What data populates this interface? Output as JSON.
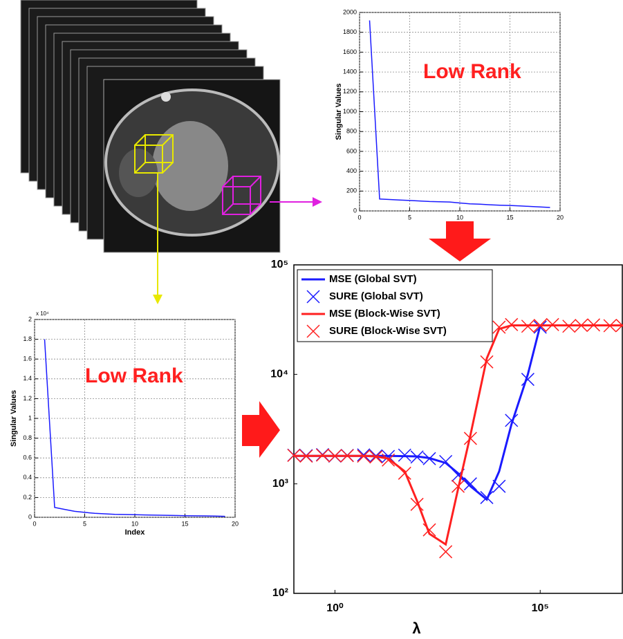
{
  "chart_data": [
    {
      "type": "line",
      "ylabel": "Singular Values",
      "annotation": "Low Rank",
      "color": "#1a1aff",
      "x": [
        1,
        2,
        3,
        4,
        5,
        6,
        7,
        8,
        9,
        10,
        11,
        12,
        13,
        14,
        15,
        16,
        17,
        18,
        19
      ],
      "values": [
        1920,
        120,
        115,
        110,
        105,
        100,
        95,
        92,
        90,
        80,
        72,
        68,
        62,
        58,
        55,
        50,
        45,
        40,
        35
      ],
      "xlim": [
        0,
        20
      ],
      "xticks": [
        0,
        5,
        10,
        15,
        20
      ],
      "ylim": [
        0,
        2000
      ],
      "yticks": [
        0,
        200,
        400,
        600,
        800,
        1000,
        1200,
        1400,
        1600,
        1800,
        2000
      ],
      "grid": true
    },
    {
      "type": "line",
      "xlabel": "Index",
      "ylabel": "Singular Values",
      "annotation": "Low Rank",
      "y_multiplier": "x 10⁴",
      "color": "#1a1aff",
      "x": [
        1,
        2,
        3,
        4,
        5,
        6,
        7,
        8,
        9,
        10,
        11,
        12,
        13,
        14,
        15,
        16,
        17,
        18,
        19
      ],
      "values": [
        1.8,
        0.1,
        0.08,
        0.06,
        0.05,
        0.04,
        0.035,
        0.03,
        0.028,
        0.026,
        0.024,
        0.022,
        0.02,
        0.018,
        0.016,
        0.015,
        0.014,
        0.012,
        0.01
      ],
      "xlim": [
        0,
        20
      ],
      "xticks": [
        0,
        5,
        10,
        15,
        20
      ],
      "ylim": [
        0,
        2
      ],
      "yticks": [
        0,
        0.2,
        0.4,
        0.6,
        0.8,
        1,
        1.2,
        1.4,
        1.6,
        1.8,
        2
      ],
      "grid": true
    },
    {
      "type": "line",
      "xlabel": "λ",
      "log_x": true,
      "log_y": true,
      "legend": "top-left",
      "grid": false,
      "xlim": [
        0.1,
        10000000
      ],
      "xticks": [
        {
          "value": 1,
          "label": "10⁰"
        },
        {
          "value": 100000,
          "label": "10⁵"
        }
      ],
      "ylim": [
        100,
        100000
      ],
      "yticks": [
        {
          "value": 100,
          "label": "10²"
        },
        {
          "value": 1000,
          "label": "10³"
        },
        {
          "value": 10000,
          "label": "10⁴"
        },
        {
          "value": 100000,
          "label": "10⁵"
        }
      ],
      "series": [
        {
          "name": "MSE (Global SVT)",
          "color": "#1a1aff",
          "marker": "none",
          "x": [
            0.1,
            0.2,
            0.5,
            1,
            2,
            5,
            10,
            20,
            50,
            100,
            200,
            500,
            1000,
            2000,
            5000,
            10000,
            20000,
            50000,
            100000
          ],
          "values": [
            1800,
            1800,
            1800,
            1800,
            1800,
            1800,
            1800,
            1800,
            1790,
            1780,
            1720,
            1550,
            1250,
            950,
            720,
            1300,
            3500,
            10000,
            28000
          ]
        },
        {
          "name": "SURE (Global SVT)",
          "color": "#1a1aff",
          "marker": "x",
          "x": [
            0.1,
            0.2,
            0.5,
            1,
            2,
            5,
            10,
            20,
            50,
            100,
            200,
            500,
            1000,
            2000,
            5000,
            10000,
            20000,
            50000,
            100000
          ],
          "values": [
            1830,
            1810,
            1850,
            1790,
            1820,
            1840,
            1800,
            1780,
            1830,
            1760,
            1700,
            1600,
            1200,
            1000,
            750,
            950,
            3800,
            9000,
            27000
          ]
        },
        {
          "name": "MSE (Block-Wise SVT)",
          "color": "#ff2020",
          "marker": "none",
          "x": [
            0.1,
            0.2,
            0.5,
            1,
            2,
            5,
            10,
            20,
            50,
            100,
            200,
            500,
            1000,
            2000,
            5000,
            10000,
            20000,
            50000,
            100000,
            200000,
            500000,
            1000000,
            2000000,
            5000000,
            10000000
          ],
          "values": [
            1800,
            1800,
            1800,
            1800,
            1800,
            1800,
            1780,
            1700,
            1300,
            700,
            350,
            280,
            900,
            2800,
            14000,
            26000,
            28000,
            28000,
            28000,
            28000,
            28000,
            28000,
            28000,
            28000,
            28000
          ]
        },
        {
          "name": "SURE (Block-Wise SVT)",
          "color": "#ff2020",
          "marker": "x",
          "x": [
            0.1,
            0.2,
            0.5,
            1,
            2,
            5,
            10,
            20,
            50,
            100,
            200,
            500,
            1000,
            2000,
            5000,
            10000,
            20000,
            50000,
            100000,
            200000,
            500000,
            1000000,
            2000000,
            5000000,
            10000000
          ],
          "values": [
            1820,
            1790,
            1830,
            1800,
            1810,
            1790,
            1760,
            1650,
            1250,
            650,
            380,
            240,
            950,
            2600,
            13000,
            27000,
            28500,
            27500,
            28000,
            28500,
            27500,
            28000,
            28300,
            27800,
            28000
          ]
        }
      ]
    }
  ]
}
